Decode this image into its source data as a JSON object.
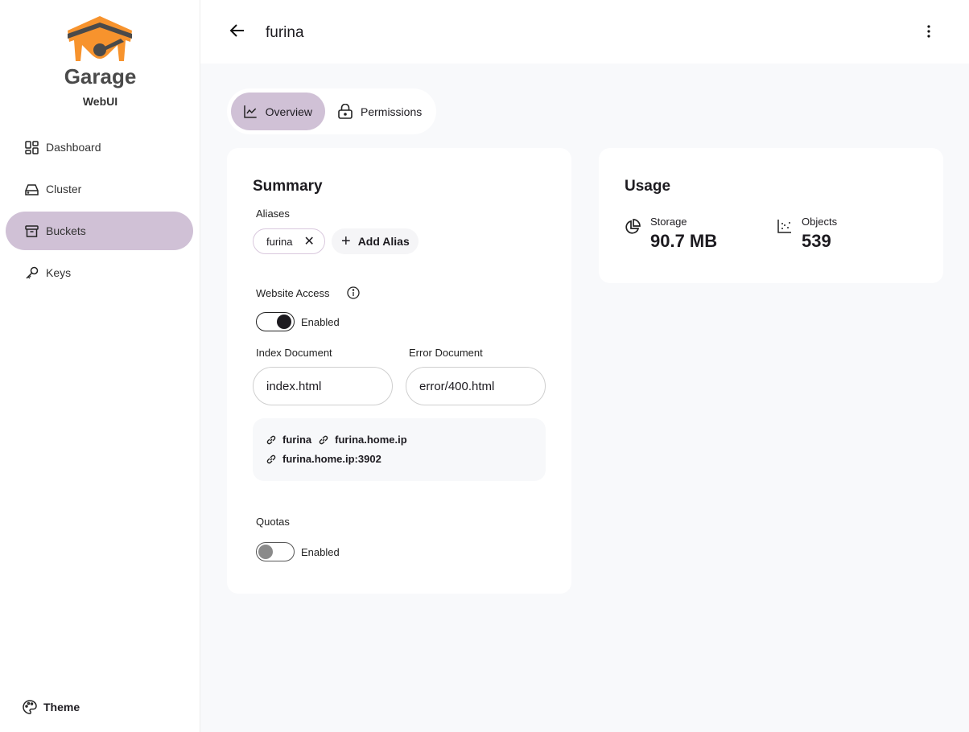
{
  "sidebar": {
    "brand": "Garage",
    "subtitle": "WebUI",
    "items": [
      {
        "label": "Dashboard",
        "icon": "dashboard-icon"
      },
      {
        "label": "Cluster",
        "icon": "hard-drive-icon"
      },
      {
        "label": "Buckets",
        "icon": "archive-icon",
        "active": true
      },
      {
        "label": "Keys",
        "icon": "key-icon"
      }
    ],
    "theme_label": "Theme"
  },
  "header": {
    "title": "furina"
  },
  "tabs": [
    {
      "label": "Overview",
      "active": true
    },
    {
      "label": "Permissions"
    }
  ],
  "summary": {
    "title": "Summary",
    "aliases_label": "Aliases",
    "aliases": [
      "furina"
    ],
    "add_alias": "Add Alias",
    "website_access_label": "Website Access",
    "website_toggle_label": "Enabled",
    "website_enabled": true,
    "index_label": "Index Document",
    "index_value": "index.html",
    "error_label": "Error Document",
    "error_value": "error/400.html",
    "links": [
      "furina",
      "furina.home.ip",
      "furina.home.ip:3902"
    ],
    "quotas_label": "Quotas",
    "quotas_toggle_label": "Enabled",
    "quotas_enabled": false
  },
  "usage": {
    "title": "Usage",
    "storage_label": "Storage",
    "storage_value": "90.7 MB",
    "objects_label": "Objects",
    "objects_value": "539"
  },
  "colors": {
    "accent": "#d0c1d6",
    "logo_orange": "#f7932d",
    "logo_gray": "#4a4a4a"
  }
}
